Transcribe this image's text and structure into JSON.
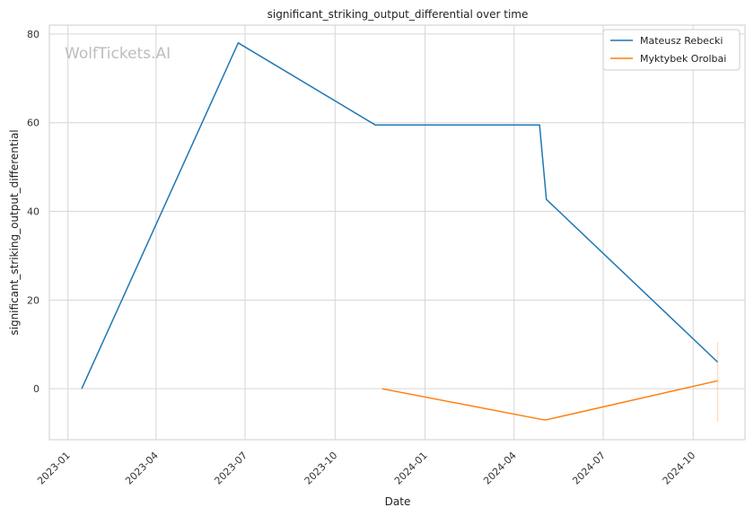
{
  "chart_data": {
    "type": "line",
    "title": "significant_striking_output_differential over time",
    "xlabel": "Date",
    "ylabel": "significant_striking_output_differential",
    "watermark": "WolfTickets.AI",
    "x_tick_labels": [
      "2023-01",
      "2023-04",
      "2023-07",
      "2023-10",
      "2024-01",
      "2024-04",
      "2024-07",
      "2024-10"
    ],
    "y_ticks": [
      0,
      20,
      40,
      60,
      80
    ],
    "ylim": [
      -11.5,
      82
    ],
    "xlim": [
      "2022-12-13",
      "2024-11-23"
    ],
    "grid": true,
    "legend_position": "top-right",
    "series": [
      {
        "name": "Mateusz Rebecki",
        "color": "#1f77b4",
        "points": [
          {
            "x": "2023-01-15",
            "y": 0
          },
          {
            "x": "2023-06-24",
            "y": 78
          },
          {
            "x": "2023-11-11",
            "y": 59.5
          },
          {
            "x": "2024-04-27",
            "y": 59.5
          },
          {
            "x": "2024-05-04",
            "y": 42.7
          },
          {
            "x": "2024-10-26",
            "y": 6
          }
        ]
      },
      {
        "name": "Myktybek Orolbai",
        "color": "#ff7f0e",
        "points": [
          {
            "x": "2023-11-18",
            "y": 0
          },
          {
            "x": "2024-05-01",
            "y": -7
          },
          {
            "x": "2024-05-04",
            "y": -7
          },
          {
            "x": "2024-10-26",
            "y": 1.8
          }
        ],
        "band": {
          "x": "2024-10-26",
          "y_low": -7.5,
          "y_high": 10.5
        }
      }
    ]
  }
}
